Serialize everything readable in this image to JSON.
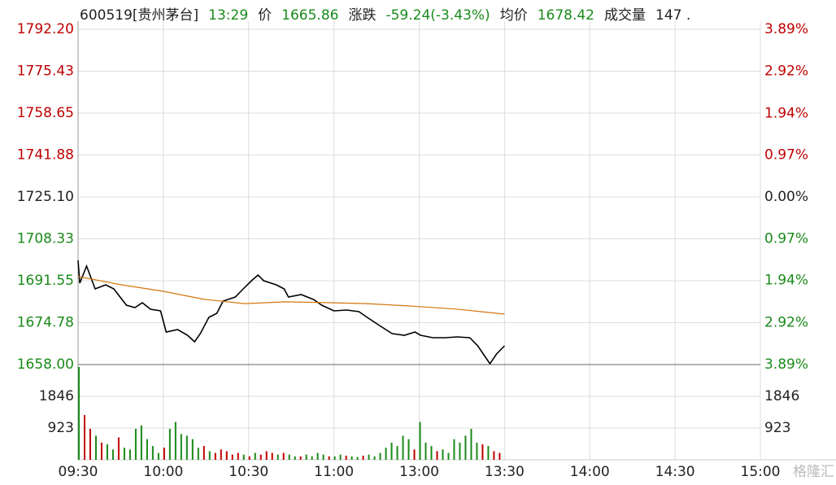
{
  "header": {
    "items": [
      {
        "text": "600519[贵州茅台]",
        "color": "#222"
      },
      {
        "text": "13:29",
        "color": "#1a8a1a"
      },
      {
        "text": "价",
        "color": "#222"
      },
      {
        "text": "1665.86",
        "color": "#1a8a1a"
      },
      {
        "text": "涨跌",
        "color": "#222"
      },
      {
        "text": "-59.24(-3.43%)",
        "color": "#1a8a1a"
      },
      {
        "text": "均价",
        "color": "#222"
      },
      {
        "text": "1678.42",
        "color": "#1a8a1a"
      },
      {
        "text": "成交量",
        "color": "#222"
      },
      {
        "text": "147 .",
        "color": "#222"
      }
    ]
  },
  "watermark": "格隆汇",
  "chart_data": [
    {
      "type": "line",
      "xlim": [
        0,
        240
      ],
      "ylim": [
        1658,
        1792.2
      ],
      "yticks": [
        {
          "value": 1658,
          "label": "1658.00"
        },
        1674.78,
        1691.55,
        1708.33,
        {
          "value": 1725.1,
          "label": "1725.10"
        },
        1741.88,
        1758.65,
        1775.43,
        {
          "value": 1792.2,
          "label": "1792.20"
        }
      ],
      "y2lim": [
        -3.89,
        3.89
      ],
      "y2ticks": [
        {
          "value": -3.89,
          "label": "3.89%"
        },
        {
          "value": -2.92,
          "label": "2.92%"
        },
        {
          "value": -1.94,
          "label": "1.94%"
        },
        {
          "value": -0.97,
          "label": "0.97%"
        },
        {
          "value": 0,
          "label": "0.00%"
        },
        {
          "value": 0.97,
          "label": "0.97%"
        },
        {
          "value": 1.94,
          "label": "1.94%"
        },
        {
          "value": 2.92,
          "label": "2.92%"
        },
        {
          "value": 3.89,
          "label": "3.89%"
        }
      ],
      "up_color": "#c00000",
      "flat_color": "#222",
      "down_color": "#1a8a1a",
      "grid": true,
      "series": [
        {
          "color": "#000000",
          "x": [
            0,
            0.6,
            3,
            6,
            9.7,
            12.6,
            17,
            20,
            22.6,
            25.5,
            29,
            31,
            35,
            38.5,
            41,
            43,
            46,
            48.8,
            51,
            55.3,
            58.1,
            61,
            63.3,
            65.3,
            69.7,
            72.5,
            74,
            78.5,
            82.8,
            85.7,
            90,
            94.5,
            98.8,
            101.7,
            106,
            110.5,
            114.8,
            118.5,
            120.5,
            124.8,
            129.1,
            133.4,
            137.8,
            140.6,
            143.5,
            144.9,
            147.2,
            150
          ],
          "values": [
            1699.69,
            1690.57,
            1697.41,
            1688.29,
            1689.92,
            1688.29,
            1681.78,
            1680.8,
            1682.76,
            1680.15,
            1679.5,
            1671.03,
            1672.01,
            1669.73,
            1667.12,
            1670.38,
            1676.89,
            1678.52,
            1683.41,
            1685.04,
            1688.29,
            1691.55,
            1693.83,
            1691.55,
            1689.92,
            1688.29,
            1685.04,
            1686.01,
            1684.06,
            1681.78,
            1679.5,
            1679.83,
            1679.17,
            1676.89,
            1673.64,
            1670.38,
            1669.73,
            1671.03,
            1669.73,
            1668.75,
            1668.75,
            1669.08,
            1668.75,
            1665.49,
            1660.61,
            1658.33,
            1662.24,
            1665.49
          ]
        },
        {
          "color": "#d4770c",
          "x": [
            0,
            15.5,
            30,
            44.4,
            58.7,
            73,
            87.3,
            101.6,
            116,
            133,
            150
          ],
          "values": [
            1693.2,
            1689.9,
            1687.3,
            1684.1,
            1682.4,
            1683.1,
            1682.8,
            1682.4,
            1681.5,
            1680.2,
            1678.2
          ]
        }
      ]
    },
    {
      "type": "bar",
      "xlim": [
        0,
        240
      ],
      "ylim": [
        0,
        2769
      ],
      "yticks": [
        923,
        1846
      ],
      "xticks": [
        {
          "value": 0,
          "label": "09:30"
        },
        {
          "value": 30,
          "label": "10:00"
        },
        {
          "value": 60,
          "label": "10:30"
        },
        {
          "value": 90,
          "label": "11:00"
        },
        {
          "value": 120,
          "label": "13:00"
        },
        {
          "value": 150,
          "label": "13:30"
        },
        {
          "value": 180,
          "label": "14:00"
        },
        {
          "value": 210,
          "label": "14:30"
        },
        {
          "value": 240,
          "label": "15:00"
        }
      ],
      "x": [
        0,
        2,
        4,
        6,
        8,
        10,
        12,
        14,
        16,
        18,
        20,
        22,
        24,
        26,
        28,
        30,
        32,
        34,
        36,
        38,
        40,
        42,
        44,
        46,
        48,
        50,
        52,
        54,
        56,
        58,
        60,
        62,
        64,
        66,
        68,
        70,
        72,
        74,
        76,
        78,
        80,
        82,
        84,
        86,
        88,
        90,
        92,
        94,
        96,
        98,
        100,
        102,
        104,
        106,
        108,
        110,
        112,
        114,
        116,
        118,
        120,
        122,
        124,
        126,
        128,
        130,
        132,
        134,
        136,
        138,
        140,
        142,
        144,
        146,
        148
      ],
      "values": [
        2700,
        1300,
        900,
        700,
        500,
        450,
        300,
        650,
        350,
        300,
        900,
        1000,
        600,
        400,
        200,
        350,
        900,
        1100,
        750,
        700,
        600,
        350,
        400,
        250,
        200,
        300,
        250,
        150,
        200,
        150,
        100,
        200,
        150,
        250,
        200,
        150,
        200,
        150,
        100,
        100,
        150,
        100,
        200,
        150,
        100,
        100,
        150,
        120,
        100,
        80,
        120,
        150,
        100,
        200,
        350,
        500,
        400,
        700,
        600,
        300,
        1100,
        500,
        400,
        250,
        300,
        200,
        600,
        500,
        700,
        900,
        500,
        450,
        400,
        250,
        200
      ],
      "colors": [
        "#1a8a1a",
        "#c00000",
        "#c00000",
        "#1a8a1a",
        "#c00000",
        "#1a8a1a",
        "#1a8a1a",
        "#c00000",
        "#1a8a1a",
        "#1a8a1a",
        "#1a8a1a",
        "#1a8a1a",
        "#1a8a1a",
        "#1a8a1a",
        "#1a8a1a",
        "#c00000",
        "#1a8a1a",
        "#1a8a1a",
        "#1a8a1a",
        "#1a8a1a",
        "#1a8a1a",
        "#1a8a1a",
        "#c00000",
        "#1a8a1a",
        "#c00000",
        "#c00000",
        "#c00000",
        "#c00000",
        "#c00000",
        "#1a8a1a",
        "#c00000",
        "#1a8a1a",
        "#c00000",
        "#c00000",
        "#c00000",
        "#1a8a1a",
        "#c00000",
        "#1a8a1a",
        "#1a8a1a",
        "#c00000",
        "#1a8a1a",
        "#1a8a1a",
        "#1a8a1a",
        "#1a8a1a",
        "#c00000",
        "#1a8a1a",
        "#1a8a1a",
        "#c00000",
        "#1a8a1a",
        "#1a8a1a",
        "#c00000",
        "#1a8a1a",
        "#1a8a1a",
        "#1a8a1a",
        "#1a8a1a",
        "#1a8a1a",
        "#1a8a1a",
        "#1a8a1a",
        "#1a8a1a",
        "#c00000",
        "#1a8a1a",
        "#1a8a1a",
        "#1a8a1a",
        "#c00000",
        "#1a8a1a",
        "#1a8a1a",
        "#1a8a1a",
        "#1a8a1a",
        "#1a8a1a",
        "#1a8a1a",
        "#1a8a1a",
        "#c00000",
        "#1a8a1a",
        "#c00000",
        "#c00000"
      ]
    }
  ]
}
